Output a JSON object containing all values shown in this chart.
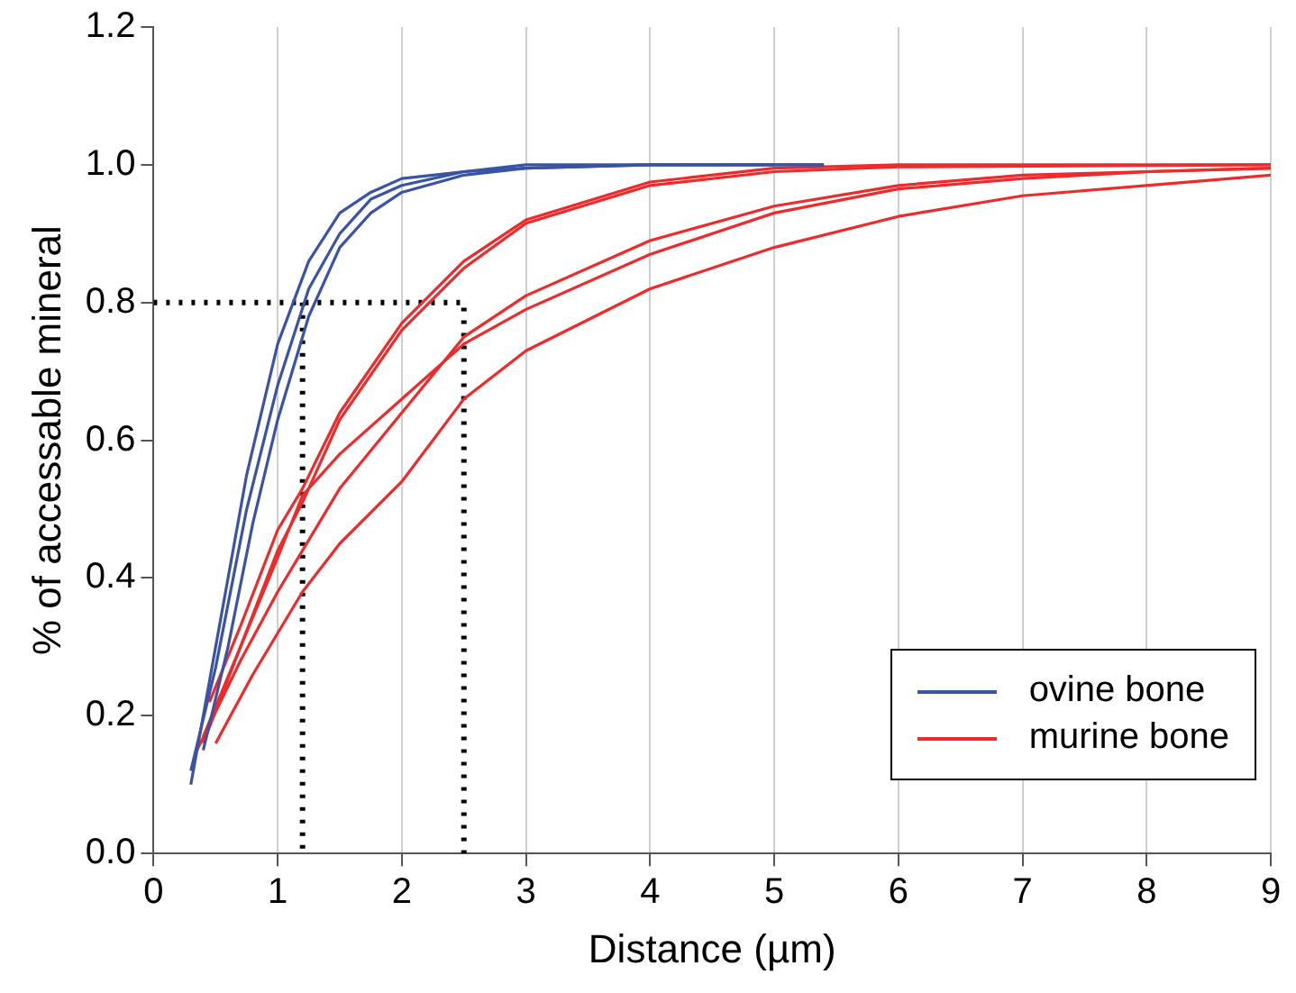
{
  "chart_data": {
    "type": "line",
    "xlabel": "Distance (µm)",
    "ylabel": "% of accessable mineral",
    "xlim": [
      0,
      9
    ],
    "xticks": [
      0,
      1,
      2,
      3,
      4,
      5,
      6,
      7,
      8,
      9
    ],
    "ylim": [
      0,
      1.2
    ],
    "yticks": [
      {
        "value": 0,
        "label": "0.0"
      },
      {
        "value": 0.2,
        "label": "0.2"
      },
      {
        "value": 0.4,
        "label": "0.4"
      },
      {
        "value": 0.6,
        "label": "0.6"
      },
      {
        "value": 0.8,
        "label": "0.8"
      },
      {
        "value": 1,
        "label": "1.0"
      },
      {
        "value": 1.2,
        "label": "1.2"
      }
    ],
    "grid": "x",
    "legend": "bottom right",
    "series": [
      {
        "name": "ovine bone",
        "color": "#3a53a4",
        "line_style": "solid",
        "x": [
          0.3,
          0.5,
          0.75,
          1.0,
          1.25,
          1.5,
          1.75,
          2.0,
          2.5,
          3,
          4,
          5.4
        ],
        "values": [
          0.1,
          0.3,
          0.55,
          0.74,
          0.86,
          0.93,
          0.96,
          0.98,
          0.99,
          1.0,
          1.0,
          1.0
        ]
      },
      {
        "color": "#3a53a4",
        "line_style": "solid",
        "x": [
          0.3,
          0.5,
          0.75,
          1.0,
          1.25,
          1.5,
          1.75,
          2.0,
          2.5,
          3,
          4,
          5.4
        ],
        "values": [
          0.12,
          0.27,
          0.5,
          0.68,
          0.82,
          0.9,
          0.95,
          0.97,
          0.99,
          0.995,
          1.0,
          1.0
        ]
      },
      {
        "color": "#3a53a4",
        "line_style": "solid",
        "x": [
          0.4,
          0.6,
          0.8,
          1.0,
          1.25,
          1.5,
          1.75,
          2.0,
          2.5,
          3,
          4,
          5
        ],
        "values": [
          0.15,
          0.3,
          0.48,
          0.63,
          0.78,
          0.88,
          0.93,
          0.96,
          0.985,
          0.995,
          1.0,
          1.0
        ]
      },
      {
        "name": "murine bone",
        "color": "#ee2a2a",
        "line_style": "solid",
        "x": [
          0.45,
          0.7,
          1.0,
          1.2,
          1.5,
          2,
          2.5,
          3,
          4,
          5,
          6,
          9
        ],
        "values": [
          0.22,
          0.33,
          0.47,
          0.53,
          0.64,
          0.77,
          0.86,
          0.92,
          0.975,
          0.995,
          1.0,
          1.0
        ]
      },
      {
        "color": "#ee2a2a",
        "line_style": "solid",
        "x": [
          0.4,
          0.7,
          1.0,
          1.2,
          1.5,
          2,
          2.5,
          3,
          4,
          5,
          6,
          9
        ],
        "values": [
          0.16,
          0.3,
          0.44,
          0.51,
          0.63,
          0.76,
          0.85,
          0.915,
          0.97,
          0.99,
          0.997,
          1.0
        ]
      },
      {
        "color": "#ee2a2a",
        "line_style": "solid",
        "x": [
          0.4,
          0.7,
          1.0,
          1.2,
          1.5,
          2,
          2.5,
          3,
          4,
          5,
          6,
          7,
          8,
          9
        ],
        "values": [
          0.17,
          0.3,
          0.43,
          0.52,
          0.58,
          0.66,
          0.74,
          0.79,
          0.87,
          0.93,
          0.965,
          0.98,
          0.99,
          0.995
        ]
      },
      {
        "color": "#ee2a2a",
        "line_style": "solid",
        "x": [
          0.35,
          0.7,
          1.0,
          1.2,
          1.5,
          2,
          2.5,
          3,
          4,
          5,
          6,
          7,
          8,
          9
        ],
        "values": [
          0.15,
          0.28,
          0.38,
          0.44,
          0.53,
          0.64,
          0.75,
          0.81,
          0.89,
          0.94,
          0.97,
          0.985,
          0.99,
          0.995
        ]
      },
      {
        "color": "#ee2a2a",
        "line_style": "solid",
        "x": [
          0.5,
          0.8,
          1.2,
          1.5,
          2,
          2.5,
          3,
          4,
          5,
          6,
          7,
          8,
          9
        ],
        "values": [
          0.16,
          0.26,
          0.38,
          0.45,
          0.54,
          0.66,
          0.73,
          0.82,
          0.88,
          0.925,
          0.955,
          0.97,
          0.985
        ]
      },
      {
        "color": "#000000",
        "line_style": "dotted",
        "x": [
          0,
          2.5,
          2.5
        ],
        "values": [
          0.8,
          0.8,
          0
        ]
      },
      {
        "color": "#000000",
        "line_style": "dotted",
        "x": [
          1.2,
          1.2
        ],
        "values": [
          0.8,
          0
        ]
      }
    ]
  }
}
